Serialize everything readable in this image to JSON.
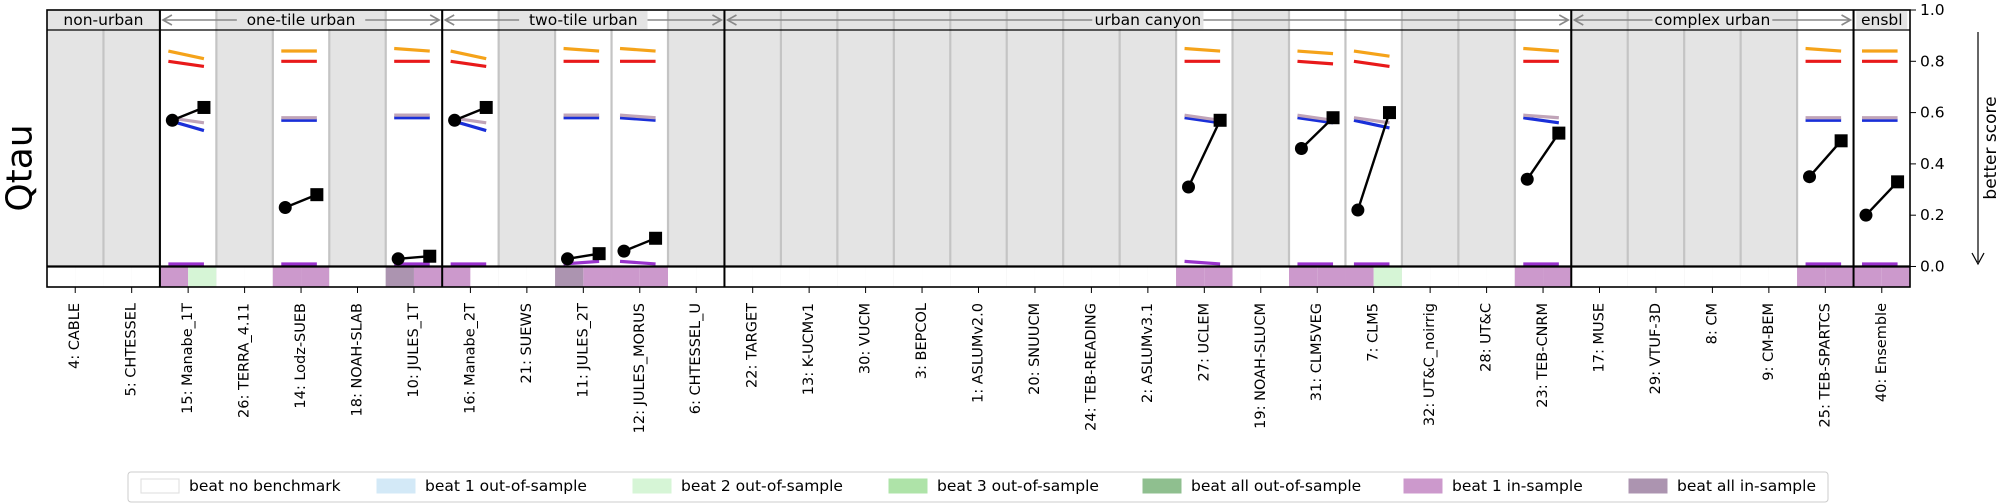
{
  "chart_data": {
    "type": "line",
    "ylabel": "Qtau",
    "right_label": "better score",
    "ylim": [
      -0.08,
      1.0
    ],
    "yticks": [
      "1.0",
      "0.8",
      "0.6",
      "0.4",
      "0.2",
      "0.0"
    ],
    "ytick_values": [
      1.0,
      0.8,
      0.6,
      0.4,
      0.2,
      0.0
    ],
    "groups": [
      {
        "label": "non-urban",
        "start": 0,
        "end": 2
      },
      {
        "label": "one-tile urban",
        "start": 2,
        "end": 7
      },
      {
        "label": "two-tile urban",
        "start": 7,
        "end": 12
      },
      {
        "label": "urban canyon",
        "start": 12,
        "end": 27
      },
      {
        "label": "complex urban",
        "start": 27,
        "end": 32
      },
      {
        "label": "ensbl",
        "start": 32,
        "end": 33
      }
    ],
    "models": [
      {
        "label": "4: CABLE",
        "has_data": false,
        "bench_state": [
          "none",
          "none"
        ]
      },
      {
        "label": "5: CHTESSEL",
        "has_data": false,
        "bench_state": [
          "none",
          "none"
        ]
      },
      {
        "label": "15: Manabe_1T",
        "has_data": true,
        "bench_state": [
          "in1",
          "out2"
        ],
        "score_from": 0.57,
        "score_to": 0.62,
        "bench_in": [
          0.84,
          0.8,
          0.57,
          0.58,
          0.01
        ],
        "bench_out": [
          0.81,
          0.78,
          0.53,
          0.56,
          0.01
        ]
      },
      {
        "label": "26: TERRA_4.11",
        "has_data": false,
        "bench_state": [
          "none",
          "none"
        ]
      },
      {
        "label": "14: Lodz-SUEB",
        "has_data": true,
        "bench_state": [
          "in1",
          "in1"
        ],
        "score_from": 0.23,
        "score_to": 0.28,
        "bench_in": [
          0.84,
          0.8,
          0.57,
          0.58,
          0.01
        ],
        "bench_out": [
          0.84,
          0.8,
          0.57,
          0.58,
          0.01
        ]
      },
      {
        "label": "18: NOAH-SLAB",
        "has_data": false,
        "bench_state": [
          "none",
          "none"
        ]
      },
      {
        "label": "10: JULES_1T",
        "has_data": true,
        "bench_state": [
          "inall",
          "in1"
        ],
        "score_from": 0.03,
        "score_to": 0.04,
        "bench_in": [
          0.85,
          0.8,
          0.58,
          0.59,
          0.01
        ],
        "bench_out": [
          0.84,
          0.8,
          0.58,
          0.59,
          0.01
        ]
      },
      {
        "label": "16: Manabe_2T",
        "has_data": true,
        "bench_state": [
          "in1",
          "none"
        ],
        "score_from": 0.57,
        "score_to": 0.62,
        "bench_in": [
          0.84,
          0.8,
          0.57,
          0.58,
          0.01
        ],
        "bench_out": [
          0.81,
          0.78,
          0.53,
          0.56,
          0.01
        ]
      },
      {
        "label": "21: SUEWS",
        "has_data": false,
        "bench_state": [
          "none",
          "none"
        ]
      },
      {
        "label": "11: JULES_2T",
        "has_data": true,
        "bench_state": [
          "inall",
          "in1"
        ],
        "score_from": 0.03,
        "score_to": 0.05,
        "bench_in": [
          0.85,
          0.8,
          0.58,
          0.59,
          0.01
        ],
        "bench_out": [
          0.84,
          0.8,
          0.58,
          0.59,
          0.02
        ]
      },
      {
        "label": "12: JULES_MORUS",
        "has_data": true,
        "bench_state": [
          "in1",
          "in1"
        ],
        "score_from": 0.06,
        "score_to": 0.11,
        "bench_in": [
          0.85,
          0.8,
          0.58,
          0.59,
          0.02
        ],
        "bench_out": [
          0.84,
          0.8,
          0.57,
          0.58,
          0.01
        ]
      },
      {
        "label": "6: CHTESSEL_U",
        "has_data": false,
        "bench_state": [
          "none",
          "none"
        ]
      },
      {
        "label": "22: TARGET",
        "has_data": false,
        "bench_state": [
          "none",
          "none"
        ]
      },
      {
        "label": "13: K-UCMv1",
        "has_data": false,
        "bench_state": [
          "none",
          "none"
        ]
      },
      {
        "label": "30: VUCM",
        "has_data": false,
        "bench_state": [
          "none",
          "none"
        ]
      },
      {
        "label": "3: BEPCOL",
        "has_data": false,
        "bench_state": [
          "none",
          "none"
        ]
      },
      {
        "label": "1: ASLUMv2.0",
        "has_data": false,
        "bench_state": [
          "none",
          "none"
        ]
      },
      {
        "label": "20: SNUUCM",
        "has_data": false,
        "bench_state": [
          "none",
          "none"
        ]
      },
      {
        "label": "24: TEB-READING",
        "has_data": false,
        "bench_state": [
          "none",
          "none"
        ]
      },
      {
        "label": "2: ASLUMv3.1",
        "has_data": false,
        "bench_state": [
          "none",
          "none"
        ]
      },
      {
        "label": "27: UCLEM",
        "has_data": true,
        "bench_state": [
          "in1",
          "in1"
        ],
        "score_from": 0.31,
        "score_to": 0.57,
        "bench_in": [
          0.85,
          0.8,
          0.58,
          0.59,
          0.02
        ],
        "bench_out": [
          0.84,
          0.8,
          0.56,
          0.57,
          0.01
        ]
      },
      {
        "label": "19: NOAH-SLUCM",
        "has_data": false,
        "bench_state": [
          "none",
          "none"
        ]
      },
      {
        "label": "31: CLM5VEG",
        "has_data": true,
        "bench_state": [
          "in1",
          "in1"
        ],
        "score_from": 0.46,
        "score_to": 0.58,
        "bench_in": [
          0.84,
          0.8,
          0.58,
          0.59,
          0.01
        ],
        "bench_out": [
          0.83,
          0.79,
          0.56,
          0.57,
          0.01
        ]
      },
      {
        "label": "7: CLM5",
        "has_data": true,
        "bench_state": [
          "in1",
          "out2"
        ],
        "score_from": 0.22,
        "score_to": 0.6,
        "bench_in": [
          0.84,
          0.8,
          0.57,
          0.58,
          0.01
        ],
        "bench_out": [
          0.82,
          0.78,
          0.54,
          0.56,
          0.01
        ]
      },
      {
        "label": "32: UT&C_noirrig",
        "has_data": false,
        "bench_state": [
          "none",
          "none"
        ]
      },
      {
        "label": "28: UT&C",
        "has_data": false,
        "bench_state": [
          "none",
          "none"
        ]
      },
      {
        "label": "23: TEB-CNRM",
        "has_data": true,
        "bench_state": [
          "in1",
          "in1"
        ],
        "score_from": 0.34,
        "score_to": 0.52,
        "bench_in": [
          0.85,
          0.8,
          0.58,
          0.59,
          0.01
        ],
        "bench_out": [
          0.84,
          0.8,
          0.56,
          0.58,
          0.01
        ]
      },
      {
        "label": "17: MUSE",
        "has_data": false,
        "bench_state": [
          "none",
          "none"
        ]
      },
      {
        "label": "29: VTUF-3D",
        "has_data": false,
        "bench_state": [
          "none",
          "none"
        ]
      },
      {
        "label": "8: CM",
        "has_data": false,
        "bench_state": [
          "none",
          "none"
        ]
      },
      {
        "label": "9: CM-BEM",
        "has_data": false,
        "bench_state": [
          "none",
          "none"
        ]
      },
      {
        "label": "25: TEB-SPARTCS",
        "has_data": true,
        "bench_state": [
          "in1",
          "in1"
        ],
        "score_from": 0.35,
        "score_to": 0.49,
        "bench_in": [
          0.85,
          0.8,
          0.57,
          0.58,
          0.01
        ],
        "bench_out": [
          0.84,
          0.8,
          0.57,
          0.58,
          0.01
        ]
      },
      {
        "label": "40: Ensemble",
        "has_data": true,
        "bench_state": [
          "in1",
          "in1"
        ],
        "score_from": 0.2,
        "score_to": 0.33,
        "bench_in": [
          0.84,
          0.8,
          0.57,
          0.58,
          0.01
        ],
        "bench_out": [
          0.84,
          0.8,
          0.57,
          0.58,
          0.01
        ]
      }
    ],
    "benchmark_colors": [
      "#f5a31a",
      "#e8191a",
      "#1a2fd8",
      "#c0a4b8",
      "#9933cc"
    ],
    "score_color": "#000000",
    "legend": [
      {
        "label": "beat no benchmark",
        "key": "none",
        "color": "#ffffff"
      },
      {
        "label": "beat 1 out-of-sample",
        "key": "out1",
        "color": "#d3e9f7"
      },
      {
        "label": "beat 2 out-of-sample",
        "key": "out2",
        "color": "#d6f5d6"
      },
      {
        "label": "beat 3 out-of-sample",
        "key": "out3",
        "color": "#aee3a8"
      },
      {
        "label": "beat all out-of-sample",
        "key": "outall",
        "color": "#8fbf8f"
      },
      {
        "label": "beat 1 in-sample",
        "key": "in1",
        "color": "#cc99cc"
      },
      {
        "label": "beat all in-sample",
        "key": "inall",
        "color": "#ac94b0"
      }
    ],
    "legend_placement": "bottom",
    "grid": false
  }
}
